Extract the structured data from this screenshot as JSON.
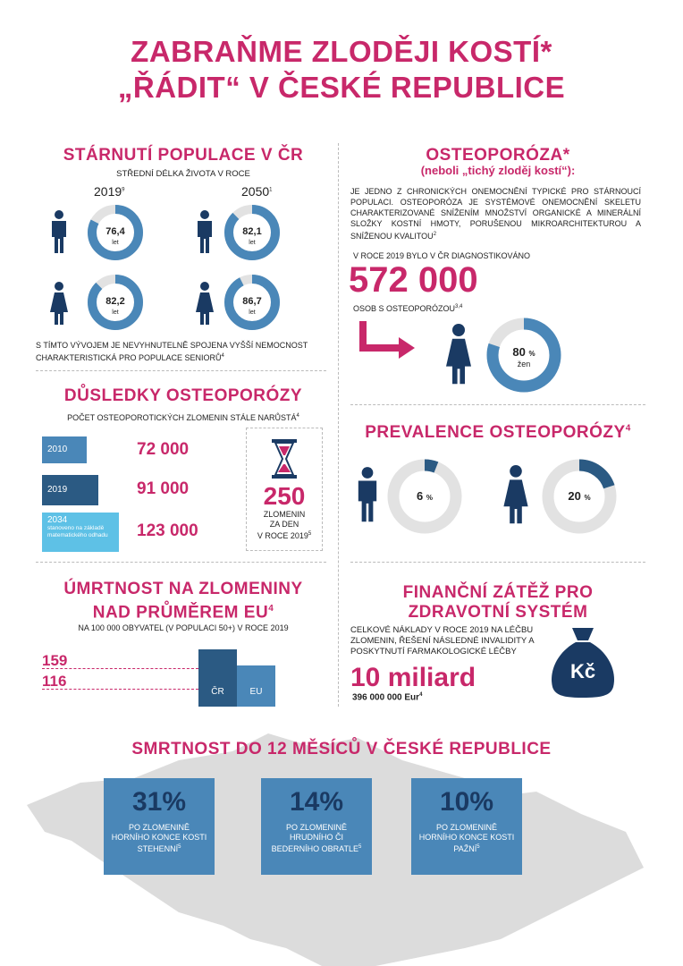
{
  "header": {
    "line1": "ZABRAŇME ZLODĚJI KOSTÍ*",
    "line2": "„ŘÁDIT“ V ČESKÉ REPUBLICE"
  },
  "aging": {
    "title": "STÁRNUTÍ POPULACE V ČR",
    "subtitle": "STŘEDNÍ DÉLKA ŽIVOTA V ROCE",
    "year1": "2019",
    "year1_sup": "9",
    "year2": "2050",
    "year2_sup": "1",
    "men2019": "76,4",
    "men2050": "82,1",
    "women2019": "82,2",
    "women2050": "86,7",
    "unit": "let",
    "note": "S TÍMTO VÝVOJEM JE NEVYHNUTELNĚ SPOJENA VYŠŠÍ NE­MOCNOST CHARAKTERISTICKÁ PRO POPULACE SENIORŮ",
    "note_sup": "4"
  },
  "osteo": {
    "title": "OSTEOPORÓZA*",
    "subtitle": "(neboli „tichý zloděj kostí“):",
    "desc": "JE JEDNO Z CHRONICKÝCH ONEMOCNĚNÍ TYPICKÉ PRO STÁR­NOUCÍ POPULACI. OSTEOPORÓZA JE SYSTÉMOVÉ ONEMOC­NĚNÍ SKELETU CHARAKTERIZOVANÉ SNÍŽENÍM MNOŽSTVÍ OR­GANICKÉ A MINERÁLNÍ SLOŽKY KOSTNÍ HMOTY, PORUŠENOU MIKROARCHITEKTUROU A SNÍŽENOU KVALITOU",
    "desc_sup": "2",
    "diag_label": "V ROCE 2019 BYLO V ČR DIAGNOSTIKOVÁNO",
    "diag_number": "572 000",
    "diag_unit": "OSOB S OSTEOPORÓZOU",
    "diag_sup": "3,4",
    "women_pct_label": "80",
    "women_pct_unit": "%",
    "women_word": "žen",
    "women_share": 0.8
  },
  "consequences": {
    "title": "DŮSLEDKY OSTEOPORÓZY",
    "subtitle": "POČET OSTEOPOROTICKÝCH ZLOMENIN STÁLE NARŮSTÁ",
    "subtitle_sup": "4",
    "rows": [
      {
        "year": "2010",
        "value": "72 000",
        "note": ""
      },
      {
        "year": "2019",
        "value": "91 000",
        "note": ""
      },
      {
        "year": "2034",
        "value": "123 000",
        "note": "stanoveno na základě matema­tického odhadu"
      }
    ],
    "daily_number": "250",
    "daily_label1": "ZLOMENIN",
    "daily_label2": "ZA DEN",
    "daily_label3": "V ROCE 2019",
    "daily_sup": "5"
  },
  "prevalence": {
    "title": "PREVALENCE OSTEOPORÓZY",
    "title_sup": "4",
    "men_pct": "6",
    "women_pct": "20",
    "pct_sign": "%",
    "men_share": 0.06,
    "women_share": 0.2
  },
  "mortality": {
    "title1": "ÚMRTNOST NA ZLOMENINY",
    "title2": "NAD PRŮMĚREM EU",
    "title_sup": "4",
    "subtitle": "NA 100 000 OBYVATEL (V POPULACI 50+) V ROCE 2019",
    "cz_value": "159",
    "eu_value": "116",
    "cz_label": "ČR",
    "eu_label": "EU",
    "cz_num": 159,
    "eu_num": 116
  },
  "finance": {
    "title1": "FINANČNÍ ZÁTĚŽ PRO",
    "title2": "ZDRAVOTNÍ SYSTÉM",
    "desc": "CELKOVÉ NÁKLADY V ROCE 2019 NA LÉČBU ZLOMENIN, ŘEŠENÍ NÁSLEDNÉ INVALIDITY A POSKYTNUTÍ FARMAKOLOGICKÉ LÉČBY",
    "amount": "10 miliard",
    "eur": "396 000 000 Eur",
    "eur_sup": "4",
    "bag_label": "Kč"
  },
  "lethality": {
    "title": "SMRTNOST DO 12 MĚSÍCŮ V ČESKÉ REPUBLICE",
    "boxes": [
      {
        "pct": "31%",
        "desc": "PO ZLOMENINĚ HORNÍHO KONCE KOSTI STEHENNÍ",
        "sup": "5"
      },
      {
        "pct": "14%",
        "desc": "PO ZLOMENINĚ HRUDNÍHO ČI BEDERNÍHO OBRATLE",
        "sup": "5"
      },
      {
        "pct": "10%",
        "desc": "PO ZLOMENINĚ HORNÍHO KONCE KOSTI PAŽNÍ",
        "sup": "5"
      }
    ]
  },
  "colors": {
    "pink": "#c8286a",
    "navy": "#1a3a63",
    "blue": "#4a87b8",
    "light_blue": "#5ec1e6",
    "mid_blue": "#2b5a83",
    "grey": "#e2e2e2",
    "map_grey": "#dcdcdc"
  }
}
